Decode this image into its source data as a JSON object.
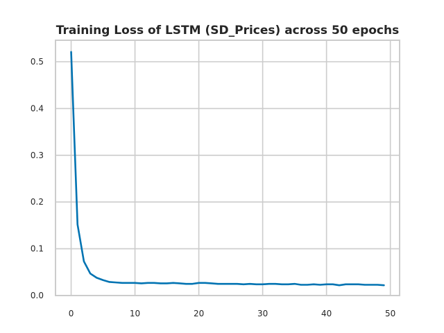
{
  "chart_data": {
    "type": "line",
    "title": "Training Loss of LSTM (SD_Prices) across 50 epochs",
    "xlabel": "",
    "ylabel": "",
    "xlim": [
      -2.45,
      51.45
    ],
    "ylim": [
      0,
      0.546
    ],
    "x_ticks": [
      0,
      10,
      20,
      30,
      40,
      50
    ],
    "y_ticks": [
      0.0,
      0.1,
      0.2,
      0.3,
      0.4,
      0.5
    ],
    "x_tick_labels": [
      "0",
      "10",
      "20",
      "30",
      "40",
      "50"
    ],
    "y_tick_labels": [
      "0.0",
      "0.1",
      "0.2",
      "0.3",
      "0.4",
      "0.5"
    ],
    "grid": true,
    "line_color": "#0173b2",
    "series": [
      {
        "x": [
          0,
          1,
          2,
          3,
          4,
          5,
          6,
          7,
          8,
          9,
          10,
          11,
          12,
          13,
          14,
          15,
          16,
          17,
          18,
          19,
          20,
          21,
          22,
          23,
          24,
          25,
          26,
          27,
          28,
          29,
          30,
          31,
          32,
          33,
          34,
          35,
          36,
          37,
          38,
          39,
          40,
          41,
          42,
          43,
          44,
          45,
          46,
          47,
          48,
          49
        ],
        "values": [
          0.521,
          0.152,
          0.073,
          0.047,
          0.038,
          0.033,
          0.029,
          0.028,
          0.027,
          0.027,
          0.027,
          0.026,
          0.027,
          0.027,
          0.026,
          0.026,
          0.027,
          0.026,
          0.025,
          0.025,
          0.027,
          0.027,
          0.026,
          0.025,
          0.025,
          0.025,
          0.025,
          0.024,
          0.025,
          0.024,
          0.024,
          0.025,
          0.025,
          0.024,
          0.024,
          0.025,
          0.023,
          0.023,
          0.024,
          0.023,
          0.024,
          0.024,
          0.022,
          0.024,
          0.024,
          0.024,
          0.023,
          0.023,
          0.023,
          0.022
        ]
      }
    ]
  }
}
